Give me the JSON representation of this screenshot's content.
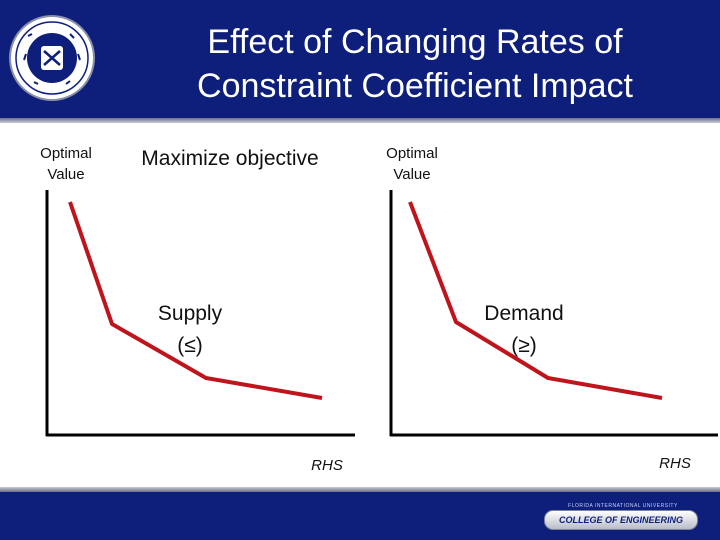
{
  "slide": {
    "title_line1": "Effect of Changing Rates of",
    "title_line2": "Constraint Coefficient Impact",
    "subtitle": "Maximize objective"
  },
  "charts": [
    {
      "y_axis_label_line1": "Optimal",
      "y_axis_label_line2": "Value",
      "x_axis_label": "RHS",
      "constraint_label": "Supply",
      "constraint_symbol": "(≤)"
    },
    {
      "y_axis_label_line1": "Optimal",
      "y_axis_label_line2": "Value",
      "x_axis_label": "RHS",
      "constraint_label": "Demand",
      "constraint_symbol": "(≥)"
    }
  ],
  "footer": {
    "university": "FLORIDA INTERNATIONAL UNIVERSITY",
    "college": "COLLEGE OF ENGINEERING"
  },
  "colors": {
    "header": "#0d1f7a",
    "curve": "#c0141c",
    "axis": "#000000"
  }
}
